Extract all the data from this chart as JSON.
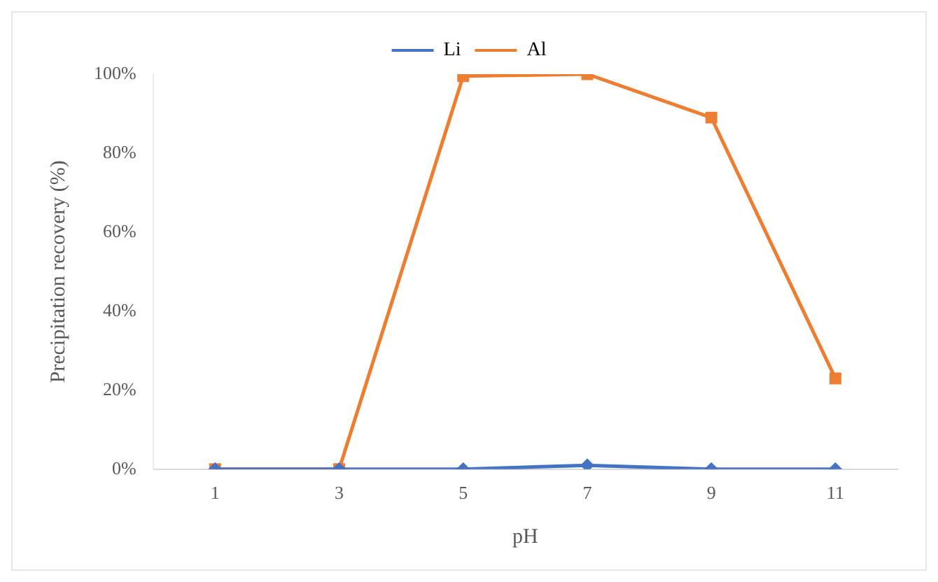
{
  "chart_data": {
    "type": "line",
    "xlabel": "pH",
    "ylabel": "Precipitation recovery (%)",
    "categories": [
      "1",
      "3",
      "5",
      "7",
      "9",
      "11"
    ],
    "series": [
      {
        "name": "Li",
        "color": "#4472c4",
        "marker": "diamond",
        "values": [
          0,
          0,
          0,
          1,
          0,
          0
        ]
      },
      {
        "name": "Al",
        "color": "#ed7d31",
        "marker": "square",
        "values": [
          0,
          0,
          99.5,
          100,
          89,
          23
        ]
      }
    ],
    "ylim": [
      0,
      100
    ],
    "yticks": [
      {
        "value": 0,
        "label": "0%"
      },
      {
        "value": 20,
        "label": "20%"
      },
      {
        "value": 40,
        "label": "40%"
      },
      {
        "value": 60,
        "label": "60%"
      },
      {
        "value": 80,
        "label": "80%"
      },
      {
        "value": 100,
        "label": "100%"
      }
    ],
    "grid": false,
    "legend": "top"
  }
}
